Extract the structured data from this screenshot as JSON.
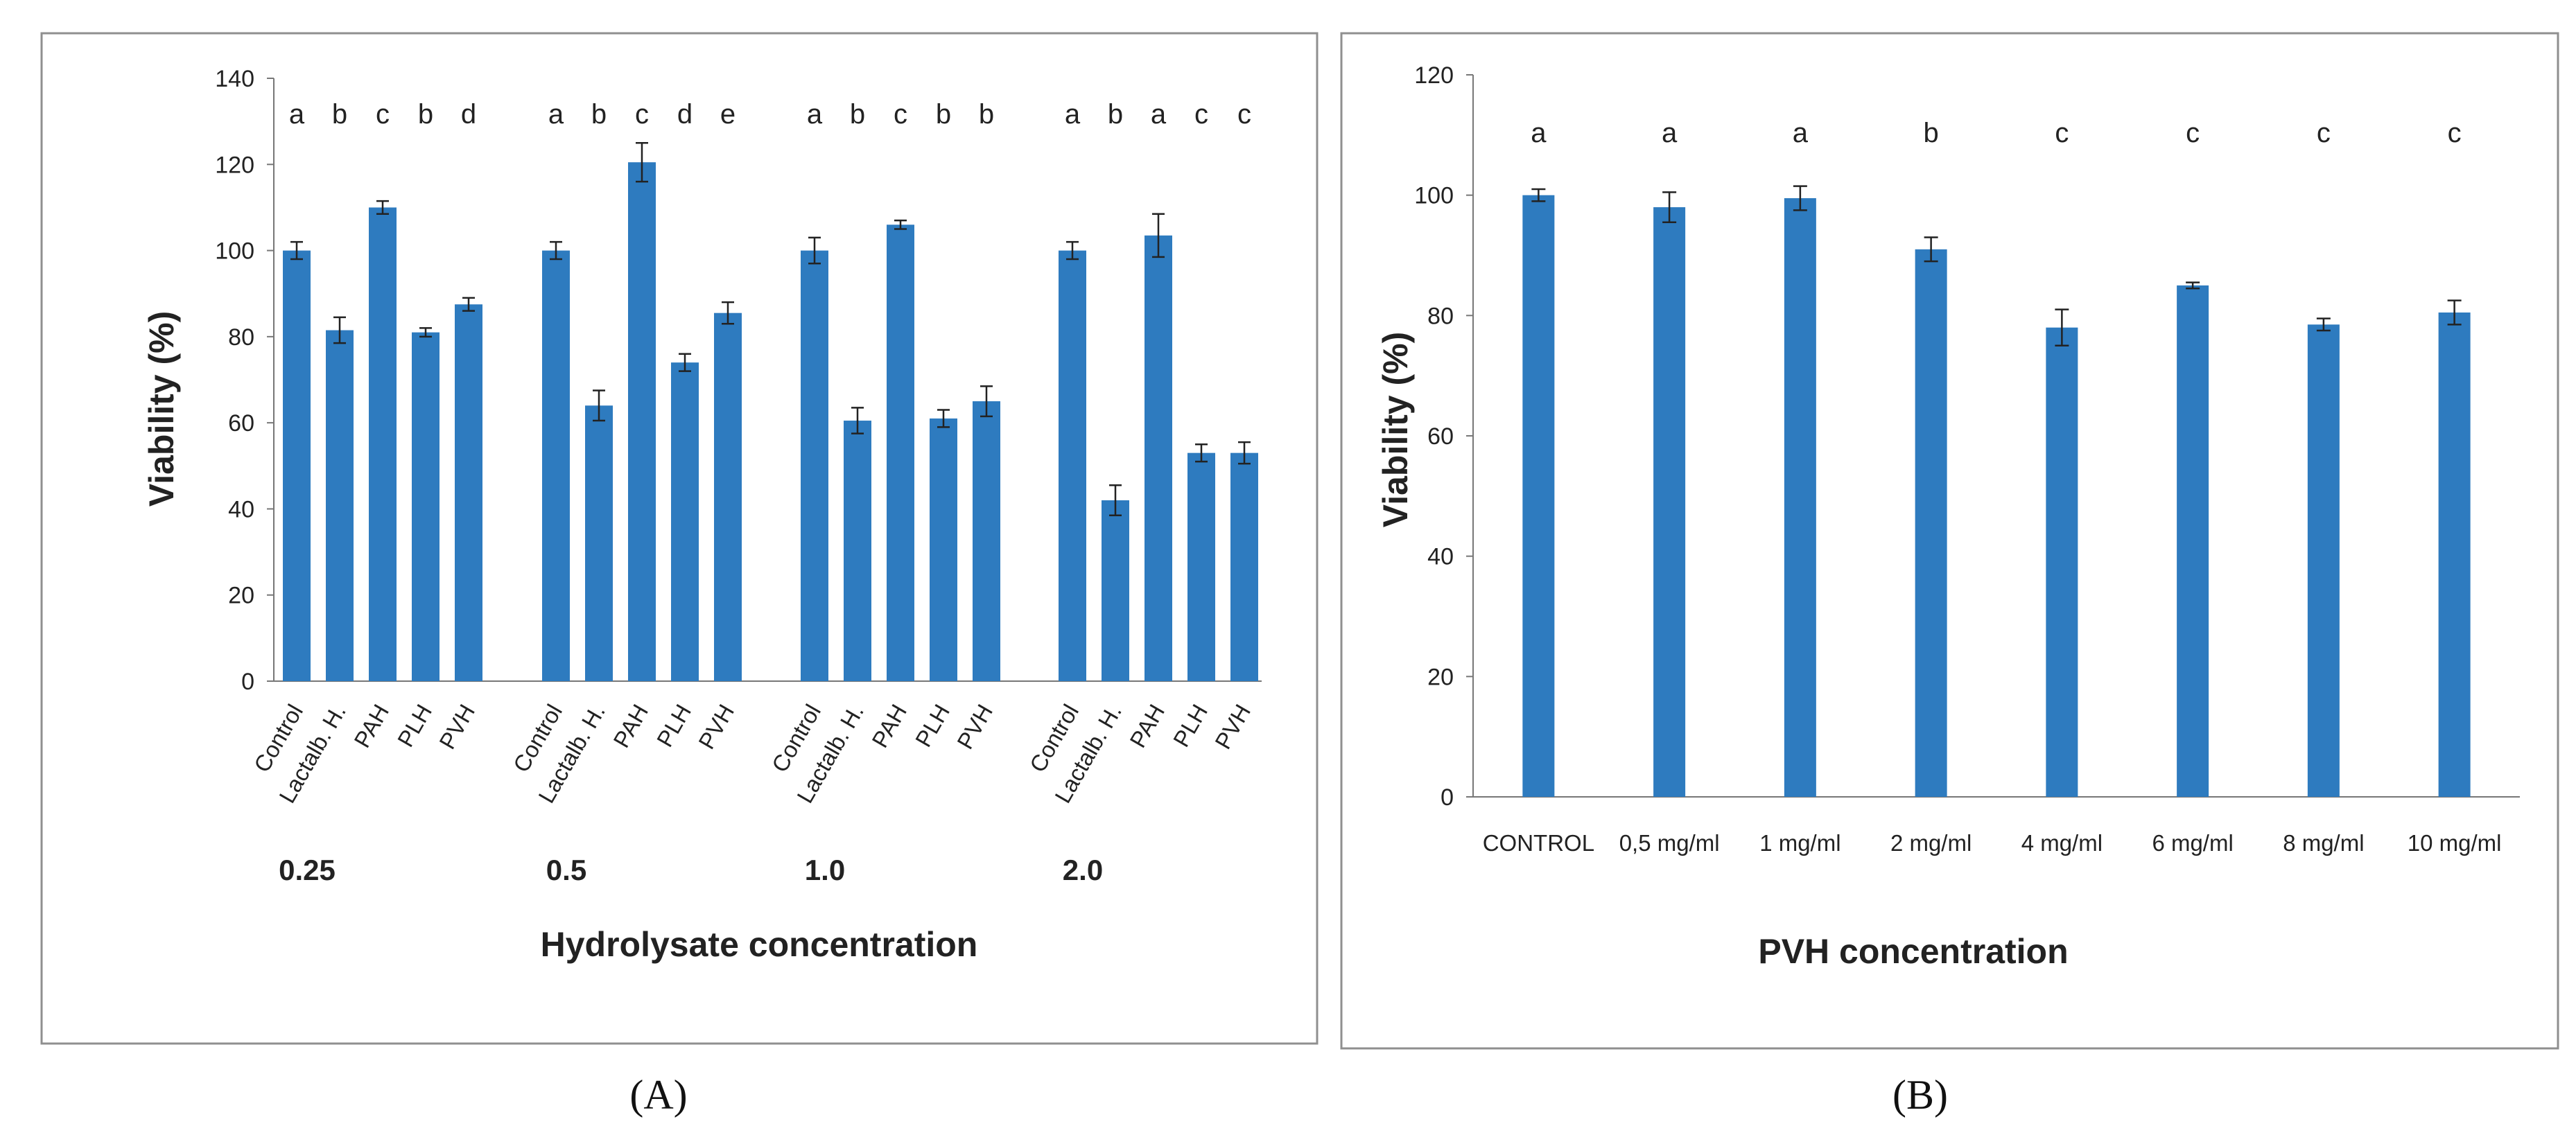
{
  "chart_data": [
    {
      "type": "bar",
      "panel_label": "(A)",
      "ylabel": "Viability (%)",
      "xlabel": "Hydrolysate concentration",
      "ylim": [
        0,
        140
      ],
      "yticks": [
        "0",
        "20",
        "40",
        "60",
        "80",
        "100",
        "120",
        "140"
      ],
      "color": "#2e7bbf",
      "groups": [
        {
          "label": "0.25",
          "categories": [
            "Control",
            "Lactalb. H.",
            "PAH",
            "PLH",
            "PVH"
          ],
          "values": [
            100,
            81.5,
            110,
            81,
            87.5
          ],
          "errors": [
            2,
            3,
            1.5,
            1,
            1.5
          ],
          "letters": [
            "a",
            "b",
            "c",
            "b",
            "d"
          ]
        },
        {
          "label": "0.5",
          "categories": [
            "Control",
            "Lactalb. H.",
            "PAH",
            "PLH",
            "PVH"
          ],
          "values": [
            100,
            64,
            120.5,
            74,
            85.5
          ],
          "errors": [
            2,
            3.5,
            4.5,
            2,
            2.5
          ],
          "letters": [
            "a",
            "b",
            "c",
            "d",
            "e"
          ]
        },
        {
          "label": "1.0",
          "categories": [
            "Control",
            "Lactalb. H.",
            "PAH",
            "PLH",
            "PVH"
          ],
          "values": [
            100,
            60.5,
            106,
            61,
            65
          ],
          "errors": [
            3,
            3,
            1,
            2,
            3.5
          ],
          "letters": [
            "a",
            "b",
            "c",
            "b",
            "b"
          ]
        },
        {
          "label": "2.0",
          "categories": [
            "Control",
            "Lactalb. H.",
            "PAH",
            "PLH",
            "PVH"
          ],
          "values": [
            100,
            42,
            103.5,
            53,
            53
          ],
          "errors": [
            2,
            3.5,
            5,
            2,
            2.5
          ],
          "letters": [
            "a",
            "b",
            "a",
            "c",
            "c"
          ]
        }
      ]
    },
    {
      "type": "bar",
      "panel_label": "(B)",
      "ylabel": "Viability (%)",
      "xlabel": "PVH concentration",
      "ylim": [
        0,
        120
      ],
      "yticks": [
        "0",
        "20",
        "40",
        "60",
        "80",
        "100",
        "120"
      ],
      "color": "#2e7bbf",
      "categories": [
        "CONTROL",
        "0,5 mg/ml",
        "1 mg/ml",
        "2 mg/ml",
        "4 mg/ml",
        "6 mg/ml",
        "8 mg/ml",
        "10 mg/ml"
      ],
      "values": [
        100,
        98,
        99.5,
        91,
        78,
        85,
        78.5,
        80.5
      ],
      "errors": [
        1,
        2.5,
        2,
        2,
        3,
        0.5,
        1,
        2
      ],
      "letters": [
        "a",
        "a",
        "a",
        "b",
        "c",
        "c",
        "c",
        "c"
      ]
    }
  ]
}
